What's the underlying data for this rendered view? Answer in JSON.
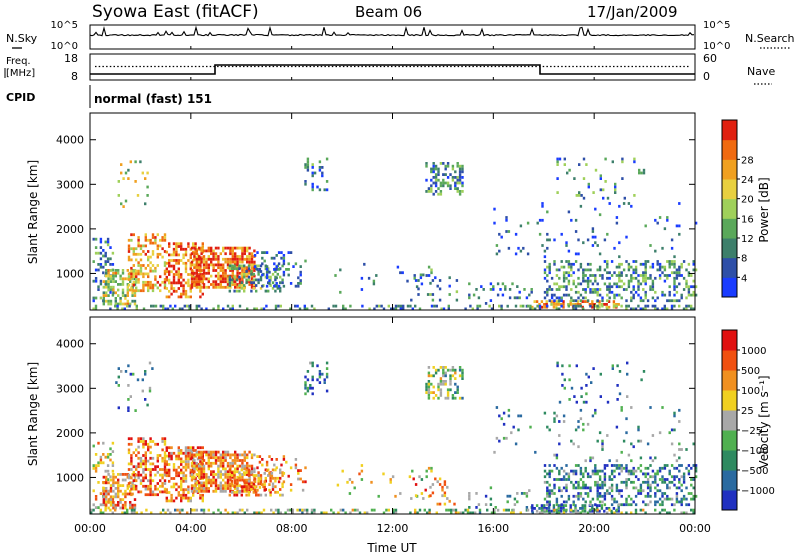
{
  "header": {
    "station": "Syowa East (fitACF)",
    "beam": "Beam 06",
    "date": "17/Jan/2009"
  },
  "summary_panels": {
    "nsky_label": "N.Sky",
    "nsearch_label": "N.Search",
    "nsky_ticks": [
      "10^5",
      "10^0"
    ],
    "nsearch_ticks": [
      "10^5",
      "10^0"
    ],
    "freq_label_line1": "Freq.",
    "freq_label_line2": "[MHz]",
    "freq_ticks": [
      "18",
      "8"
    ],
    "nave_label": "Nave",
    "nave_ticks": [
      "60",
      "0"
    ],
    "cpid_label": "CPID",
    "cpid_value": "normal (fast) 151"
  },
  "chart_data": [
    {
      "type": "heatmap",
      "name": "power",
      "ylabel": "Slant Range [km]",
      "xlabel": "",
      "ylim": [
        180,
        4600
      ],
      "yticks": [
        "1000",
        "2000",
        "3000",
        "4000"
      ],
      "colorbar_label": "Power [dB]",
      "colorbar_ticks": [
        "4",
        "8",
        "12",
        "16",
        "20",
        "24",
        "28"
      ],
      "colorscale": [
        "#1a3cff",
        "#2e4fa8",
        "#3d7f6b",
        "#5aa85a",
        "#9fd05a",
        "#e8d040",
        "#f0a020",
        "#f06a10",
        "#e02010"
      ]
    },
    {
      "type": "heatmap",
      "name": "velocity",
      "ylabel": "Slant Range [km]",
      "xlabel": "Time UT",
      "ylim": [
        180,
        4600
      ],
      "yticks": [
        "1000",
        "2000",
        "3000",
        "4000"
      ],
      "xticks": [
        "00:00",
        "04:00",
        "08:00",
        "12:00",
        "16:00",
        "20:00",
        "00:00"
      ],
      "colorbar_label": "Velocity [m s⁻¹]",
      "colorbar_ticks": [
        "1000",
        "500",
        "100",
        "25",
        "−25",
        "−100",
        "−500",
        "−1000"
      ],
      "colorscale": [
        "#2030c0",
        "#2a6aa0",
        "#2e8a60",
        "#50b050",
        "#a8a8a8",
        "#f0d020",
        "#f09020",
        "#f05010",
        "#e01010"
      ]
    }
  ]
}
